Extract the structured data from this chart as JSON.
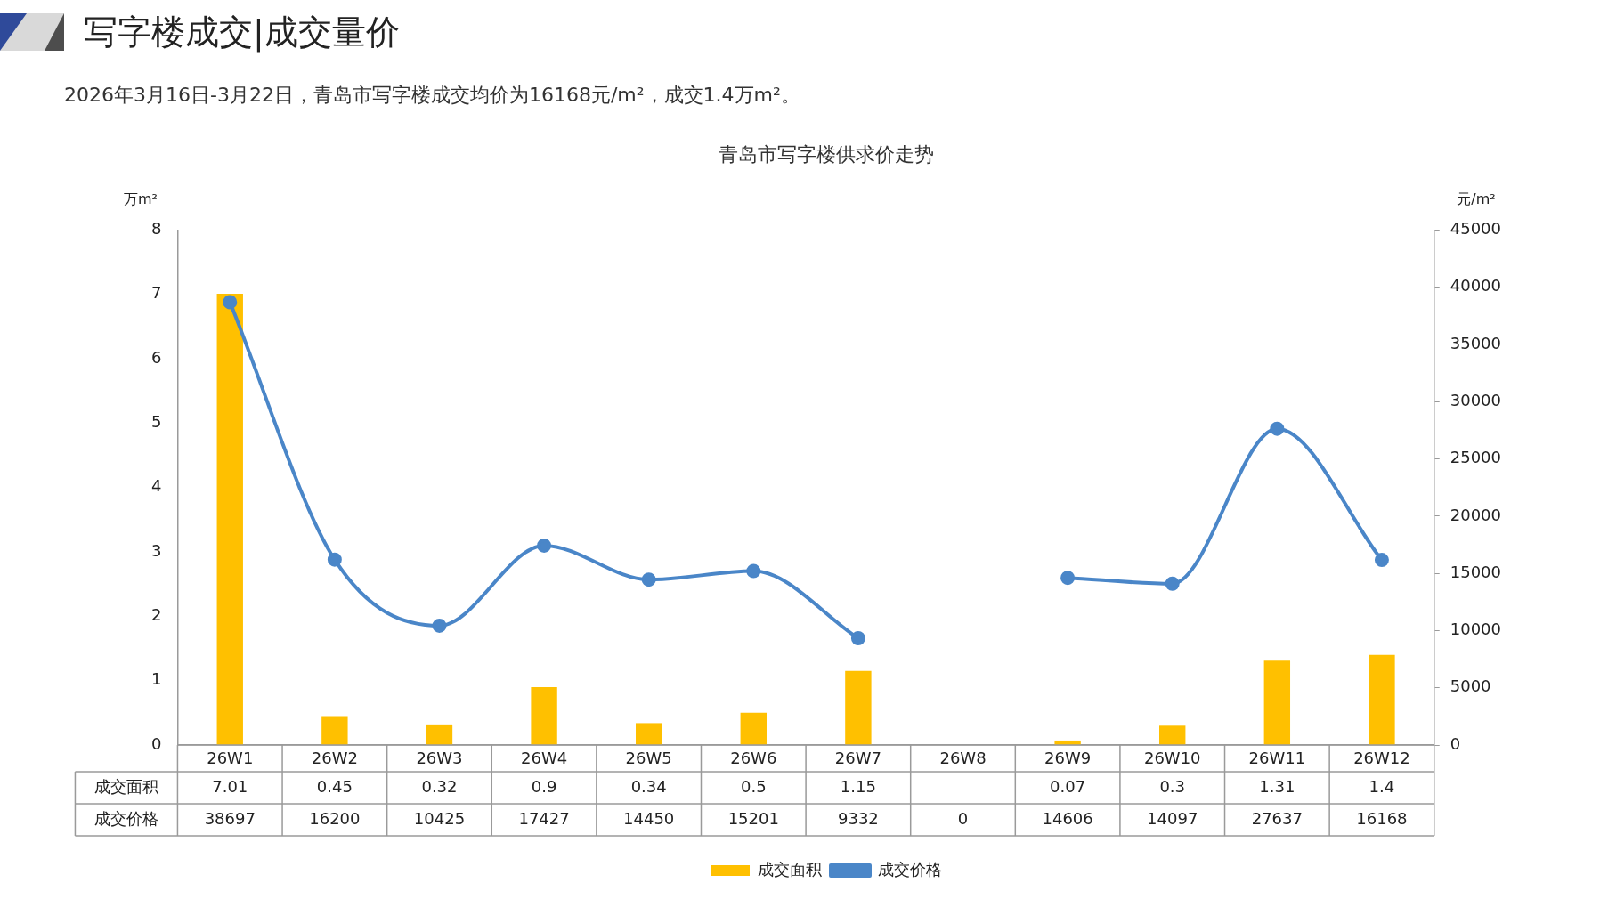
{
  "chart_data": {
    "type": "bar",
    "title": "青岛市写字楼供求价走势",
    "ylabel": "万m²",
    "y2label": "元/m²",
    "annotations": [
      "写字楼成交|成交量价",
      "2026年3月16日-3月22日，青岛市写字楼成交均价为16168元/m²，成交1.4万m²。"
    ],
    "categories": [
      "26W1",
      "26W2",
      "26W3",
      "26W4",
      "26W5",
      "26W6",
      "26W7",
      "26W8",
      "26W9",
      "26W10",
      "26W11",
      "26W12"
    ],
    "series": [
      {
        "name": "成交面积",
        "color": "#ffc000",
        "values": [
          7.01,
          0.45,
          0.32,
          0.9,
          0.34,
          0.5,
          1.15,
          null,
          0.07,
          0.3,
          1.31,
          1.4
        ],
        "value_labels": [
          "7.01",
          "0.45",
          "0.32",
          "0.9",
          "0.34",
          "0.5",
          "1.15",
          null,
          "0.07",
          "0.3",
          "1.31",
          "1.4"
        ]
      },
      {
        "name": "成交价格",
        "type": "line",
        "axis": "y2",
        "color": "#4a86c8",
        "marker": "circle",
        "values": [
          38697,
          16200,
          10425,
          17427,
          14450,
          15201,
          9332,
          null,
          14606,
          14097,
          27637,
          16168
        ],
        "value_labels": [
          "38697",
          "16200",
          "10425",
          "17427",
          "14450",
          "15201",
          "9332",
          "0",
          "14606",
          "14097",
          "27637",
          "16168"
        ]
      }
    ],
    "ylim": [
      0,
      8
    ],
    "yticks": [
      0,
      1,
      2,
      3,
      4,
      5,
      6,
      7,
      8
    ],
    "y2lim": [
      0,
      45000
    ],
    "y2ticks": [
      0,
      5000,
      10000,
      15000,
      20000,
      25000,
      30000,
      35000,
      40000,
      45000
    ],
    "legend": "bottom",
    "grid": false
  }
}
